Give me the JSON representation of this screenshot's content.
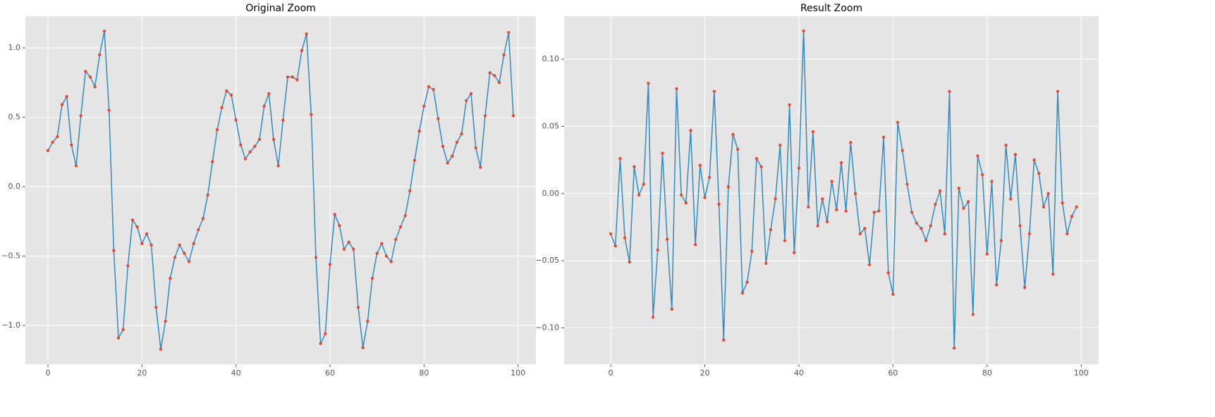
{
  "chart_data": [
    {
      "type": "line",
      "title": "Original Zoom",
      "color": "#348abd",
      "marker_color": "#e24a33",
      "grid": true,
      "x": [
        0,
        1,
        2,
        3,
        4,
        5,
        6,
        7,
        8,
        9,
        10,
        11,
        12,
        13,
        14,
        15,
        16,
        17,
        18,
        19,
        20,
        21,
        22,
        23,
        24,
        25,
        26,
        27,
        28,
        29,
        30,
        31,
        32,
        33,
        34,
        35,
        36,
        37,
        38,
        39,
        40,
        41,
        42,
        43,
        44,
        45,
        46,
        47,
        48,
        49,
        50,
        51,
        52,
        53,
        54,
        55,
        56,
        57,
        58,
        59,
        60,
        61,
        62,
        63,
        64,
        65,
        66,
        67,
        68,
        69,
        70,
        71,
        72,
        73,
        74,
        75,
        76,
        77,
        78,
        79,
        80,
        81,
        82,
        83,
        84,
        85,
        86,
        87,
        88,
        89,
        90,
        91,
        92,
        93,
        94,
        95,
        96,
        97,
        98,
        99
      ],
      "values": [
        0.26,
        0.32,
        0.36,
        0.59,
        0.65,
        0.3,
        0.15,
        0.51,
        0.83,
        0.79,
        0.72,
        0.95,
        1.12,
        0.55,
        -0.46,
        -1.09,
        -1.03,
        -0.57,
        -0.24,
        -0.29,
        -0.41,
        -0.34,
        -0.42,
        -0.87,
        -1.17,
        -0.97,
        -0.66,
        -0.51,
        -0.42,
        -0.48,
        -0.54,
        -0.41,
        -0.31,
        -0.23,
        -0.06,
        0.18,
        0.41,
        0.57,
        0.69,
        0.66,
        0.48,
        0.3,
        0.2,
        0.25,
        0.29,
        0.34,
        0.58,
        0.67,
        0.34,
        0.15,
        0.48,
        0.79,
        0.79,
        0.77,
        0.98,
        1.1,
        0.52,
        -0.51,
        -1.13,
        -1.06,
        -0.56,
        -0.2,
        -0.28,
        -0.45,
        -0.4,
        -0.45,
        -0.87,
        -1.16,
        -0.97,
        -0.66,
        -0.48,
        -0.41,
        -0.5,
        -0.54,
        -0.38,
        -0.29,
        -0.21,
        -0.03,
        0.19,
        0.4,
        0.58,
        0.72,
        0.7,
        0.49,
        0.29,
        0.17,
        0.22,
        0.32,
        0.38,
        0.62,
        0.67,
        0.28,
        0.14,
        0.51,
        0.82,
        0.8,
        0.75,
        0.95,
        1.11,
        0.51
      ],
      "xlim": [
        -4.8,
        103.8
      ],
      "ylim": [
        -1.279,
        1.228
      ],
      "xticks": [
        0,
        20,
        40,
        60,
        80,
        100
      ],
      "yticks": [
        {
          "value": -1.0,
          "label": "−1.0"
        },
        {
          "value": -0.5,
          "label": "−0.5"
        },
        {
          "value": 0.0,
          "label": "0.0"
        },
        {
          "value": 0.5,
          "label": "0.5"
        },
        {
          "value": 1.0,
          "label": "1.0"
        }
      ]
    },
    {
      "type": "line",
      "title": "Result Zoom",
      "color": "#348abd",
      "marker_color": "#e24a33",
      "grid": true,
      "x": [
        0,
        1,
        2,
        3,
        4,
        5,
        6,
        7,
        8,
        9,
        10,
        11,
        12,
        13,
        14,
        15,
        16,
        17,
        18,
        19,
        20,
        21,
        22,
        23,
        24,
        25,
        26,
        27,
        28,
        29,
        30,
        31,
        32,
        33,
        34,
        35,
        36,
        37,
        38,
        39,
        40,
        41,
        42,
        43,
        44,
        45,
        46,
        47,
        48,
        49,
        50,
        51,
        52,
        53,
        54,
        55,
        56,
        57,
        58,
        59,
        60,
        61,
        62,
        63,
        64,
        65,
        66,
        67,
        68,
        69,
        70,
        71,
        72,
        73,
        74,
        75,
        76,
        77,
        78,
        79,
        80,
        81,
        82,
        83,
        84,
        85,
        86,
        87,
        88,
        89,
        90,
        91,
        92,
        93,
        94,
        95,
        96,
        97,
        98,
        99
      ],
      "values": [
        -0.03,
        -0.039,
        0.026,
        -0.033,
        -0.051,
        0.02,
        -0.001,
        0.007,
        0.082,
        -0.092,
        -0.042,
        0.03,
        -0.034,
        -0.086,
        0.078,
        -0.001,
        -0.007,
        0.047,
        -0.038,
        0.021,
        -0.003,
        0.012,
        0.076,
        -0.008,
        -0.109,
        0.005,
        0.044,
        0.033,
        -0.074,
        -0.066,
        -0.043,
        0.026,
        0.02,
        -0.052,
        -0.027,
        -0.004,
        0.036,
        -0.035,
        0.066,
        -0.044,
        0.019,
        0.121,
        -0.01,
        0.046,
        -0.024,
        -0.004,
        -0.021,
        0.009,
        -0.012,
        0.023,
        -0.013,
        0.038,
        0.0,
        -0.03,
        -0.026,
        -0.053,
        -0.014,
        -0.013,
        0.042,
        -0.059,
        -0.075,
        0.053,
        0.032,
        0.007,
        -0.014,
        -0.022,
        -0.026,
        -0.035,
        -0.024,
        -0.008,
        0.002,
        -0.03,
        0.076,
        -0.115,
        0.004,
        -0.011,
        -0.006,
        -0.09,
        0.028,
        0.014,
        -0.045,
        0.009,
        -0.068,
        -0.035,
        0.036,
        -0.004,
        0.029,
        -0.024,
        -0.07,
        -0.03,
        0.025,
        0.015,
        -0.01,
        0.0,
        -0.06,
        0.076,
        -0.007,
        -0.03,
        -0.017,
        -0.01
      ],
      "xlim": [
        -9.9,
        103.7
      ],
      "ylim": [
        -0.127,
        0.132
      ],
      "xticks": [
        0,
        20,
        40,
        60,
        80,
        100
      ],
      "yticks": [
        {
          "value": -0.1,
          "label": "−0.10"
        },
        {
          "value": -0.05,
          "label": "−0.05"
        },
        {
          "value": 0.0,
          "label": "0.00"
        },
        {
          "value": 0.05,
          "label": "0.05"
        },
        {
          "value": 0.1,
          "label": "0.10"
        }
      ]
    }
  ]
}
